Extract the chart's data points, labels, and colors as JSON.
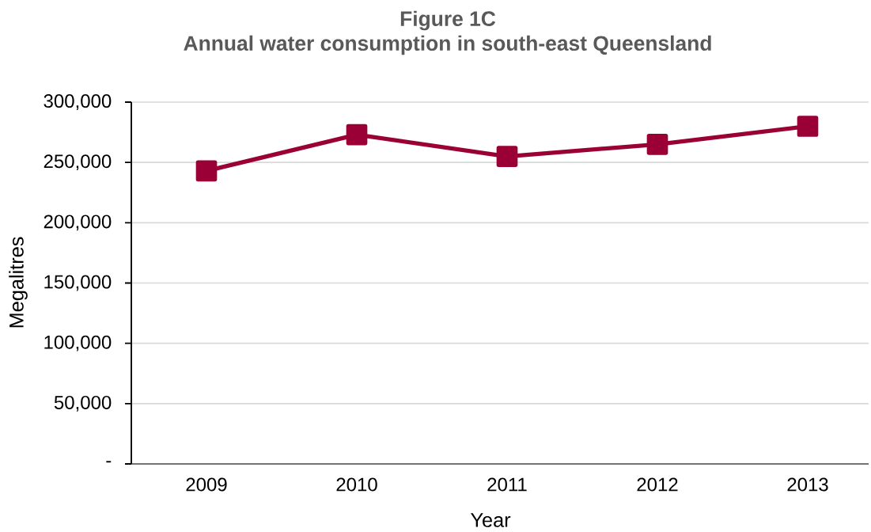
{
  "chart_data": {
    "type": "line",
    "title": "Figure 1C",
    "subtitle": "Annual water consumption in south-east Queensland",
    "xlabel": "Year",
    "ylabel": "Megalitres",
    "categories": [
      "2009",
      "2010",
      "2011",
      "2012",
      "2013"
    ],
    "series": [
      {
        "color": "#9a0036",
        "values": [
          243000,
          273000,
          255000,
          265000,
          280000
        ]
      }
    ],
    "ylim": [
      0,
      300000
    ],
    "yticks": [
      {
        "value": 0,
        "label": "-"
      },
      {
        "value": 50000,
        "label": "50,000"
      },
      {
        "value": 100000,
        "label": "100,000"
      },
      {
        "value": 150000,
        "label": "150,000"
      },
      {
        "value": 200000,
        "label": "200,000"
      },
      {
        "value": 250000,
        "label": "250,000"
      },
      {
        "value": 300000,
        "label": "300,000"
      }
    ],
    "grid": "y",
    "marker": "square",
    "line_style": "solid"
  }
}
